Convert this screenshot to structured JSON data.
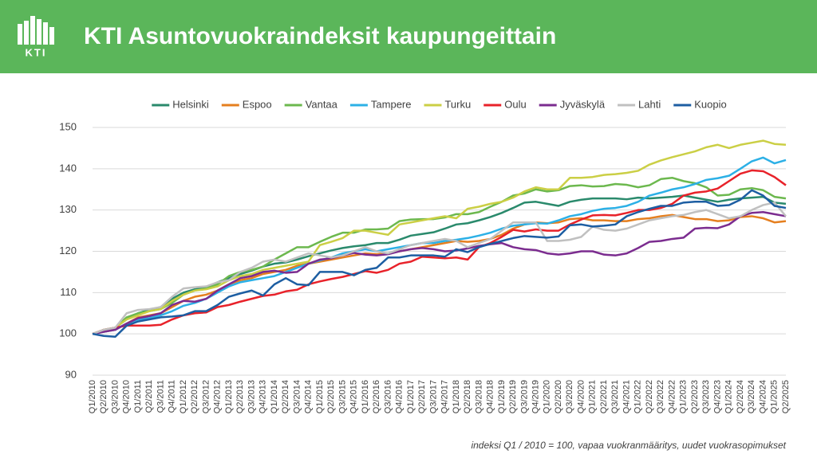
{
  "header": {
    "logo_text": "KTI"
  },
  "chart_data": {
    "type": "line",
    "title": "KTI Asuntovuokraindeksit kaupungeittain",
    "note": "indeksi Q1 / 2010 = 100, vapaa vuokranmääritys, uudet vuokrasopimukset",
    "legend": "top",
    "grid": true,
    "ylim": [
      90,
      150
    ],
    "yticks": [
      90,
      100,
      110,
      120,
      130,
      140,
      150
    ],
    "categories": [
      "Q1/2010",
      "Q2/2010",
      "Q3/2010",
      "Q4/2010",
      "Q1/2011",
      "Q2/2011",
      "Q3/2011",
      "Q4/2011",
      "Q1/2012",
      "Q2/2012",
      "Q3/2012",
      "Q4/2012",
      "Q1/2013",
      "Q2/2013",
      "Q3/2013",
      "Q4/2013",
      "Q1/2014",
      "Q2/2014",
      "Q3/2014",
      "Q4/2014",
      "Q1/2015",
      "Q2/2015",
      "Q3/2015",
      "Q4/2015",
      "Q1/2016",
      "Q2/2016",
      "Q3/2016",
      "Q4/2016",
      "Q1/2017",
      "Q2/2017",
      "Q3/2017",
      "Q4/2017",
      "Q1/2018",
      "Q2/2018",
      "Q3/2018",
      "Q4/2018",
      "Q1/2019",
      "Q2/2019",
      "Q3/2019",
      "Q4/2019",
      "Q1/2020",
      "Q2/2020",
      "Q3/2020",
      "Q4/2020",
      "Q1/2021",
      "Q2/2021",
      "Q3/2021",
      "Q4/2021",
      "Q1/2022",
      "Q2/2022",
      "Q3/2022",
      "Q4/2022",
      "Q1/2023",
      "Q2/2023",
      "Q3/2023",
      "Q4/2023",
      "Q1/2024",
      "Q2/2024",
      "Q3/2024",
      "Q4/2024",
      "Q1/2025",
      "Q2/2025"
    ],
    "series": [
      {
        "name": "Helsinki",
        "color": "#2a8a6c",
        "values": [
          100,
          100.8,
          101.5,
          103.5,
          105,
          105.8,
          106.5,
          108.5,
          110,
          110.8,
          111.3,
          112.5,
          113.5,
          114.5,
          115.3,
          116.3,
          117,
          117.3,
          118,
          118.8,
          119.5,
          120.2,
          120.8,
          121.2,
          121.5,
          122,
          122,
          122.8,
          123.8,
          124.2,
          124.6,
          125.5,
          126.5,
          126.8,
          127.5,
          128.3,
          129.3,
          130.5,
          131.8,
          132,
          131.5,
          131,
          132,
          132.5,
          132.8,
          132.8,
          132.8,
          132.6,
          133,
          132.8,
          133,
          133.2,
          133.5,
          133,
          132.5,
          132,
          132.5,
          132.8,
          133,
          133.2,
          131.8,
          131.5
        ]
      },
      {
        "name": "Espoo",
        "color": "#e57f1f",
        "values": [
          100,
          100.5,
          101,
          102.5,
          104,
          104.5,
          105,
          106.5,
          108,
          109,
          109.5,
          110.5,
          112,
          113,
          113.5,
          114.5,
          115,
          115.5,
          116.5,
          117,
          117.5,
          118,
          118.5,
          119,
          119.5,
          119.3,
          119.5,
          120,
          120.5,
          121,
          121.5,
          122,
          122.5,
          122.3,
          122.5,
          123,
          124,
          125.5,
          126.5,
          127,
          126.8,
          127,
          127.8,
          128,
          127.5,
          127.5,
          127.3,
          127.3,
          127.8,
          128,
          128.5,
          128.8,
          128.3,
          127.8,
          127.8,
          127.3,
          127.5,
          128.3,
          128.5,
          128,
          127,
          127.3
        ]
      },
      {
        "name": "Vantaa",
        "color": "#6cb84e",
        "values": [
          100,
          101,
          101.5,
          104,
          105,
          105.5,
          106,
          107.5,
          109.5,
          110.5,
          111,
          112,
          114,
          115,
          115.5,
          116.3,
          118,
          119.5,
          121,
          121,
          122.3,
          123.5,
          124.5,
          124.5,
          125.3,
          125.3,
          125.5,
          127.3,
          127.7,
          127.8,
          127.8,
          128.2,
          129,
          129,
          129.5,
          130.8,
          132,
          133.5,
          134,
          135,
          134.5,
          134.8,
          135.8,
          136,
          135.7,
          135.8,
          136.3,
          136.1,
          135.5,
          136,
          137.5,
          137.8,
          137,
          136.5,
          135.5,
          133.5,
          133.7,
          135,
          135.3,
          134.8,
          133.2,
          132.8
        ]
      },
      {
        "name": "Tampere",
        "color": "#2cb0e6",
        "values": [
          100,
          100.5,
          101,
          102.5,
          103.5,
          103.8,
          104.5,
          105.5,
          106.8,
          107.5,
          108.5,
          110,
          111.5,
          112.5,
          113,
          113.5,
          114,
          115,
          116,
          117,
          117.8,
          118.5,
          119.5,
          120,
          120.5,
          120,
          120.5,
          121,
          121.5,
          122,
          122,
          122.5,
          122.8,
          123.2,
          123.8,
          124.5,
          125.5,
          126.2,
          126.5,
          126.8,
          126.7,
          127.5,
          128.5,
          129,
          129.8,
          130.3,
          130.5,
          131,
          132,
          133.5,
          134.2,
          135,
          135.5,
          136.3,
          137.3,
          137.7,
          138.3,
          140,
          141.8,
          142.7,
          141.3,
          142.1
        ]
      },
      {
        "name": "Turku",
        "color": "#cbcf45",
        "values": [
          100,
          101,
          101.5,
          103.5,
          104.5,
          105.5,
          106,
          108,
          109.5,
          110.5,
          110.8,
          111.5,
          113,
          114,
          114.5,
          115.5,
          116,
          116.5,
          117,
          117.5,
          121.5,
          122.3,
          123.2,
          125,
          125,
          124.5,
          124,
          126.5,
          127,
          127.5,
          128,
          128.5,
          128,
          130.3,
          130.8,
          131.5,
          132,
          133,
          134.5,
          135.5,
          135,
          135,
          137.8,
          137.8,
          138,
          138.5,
          138.7,
          139,
          139.5,
          141,
          142,
          142.8,
          143.5,
          144.2,
          145.2,
          145.8,
          145,
          145.8,
          146.3,
          146.8,
          146,
          145.8
        ]
      },
      {
        "name": "Oulu",
        "color": "#e8222a",
        "values": [
          100,
          101,
          101.5,
          102,
          102,
          102,
          102.2,
          103.5,
          104.5,
          105,
          105.2,
          106.5,
          107,
          107.8,
          108.5,
          109.2,
          109.5,
          110.3,
          110.7,
          112,
          112.7,
          113.3,
          113.8,
          114.5,
          115.2,
          114.8,
          115.5,
          117,
          117.5,
          118.7,
          118.5,
          118.3,
          118.5,
          118,
          121,
          122,
          123.5,
          125.2,
          124.8,
          125.3,
          125,
          125,
          126.5,
          127.7,
          128.7,
          128.8,
          128.7,
          129.3,
          130,
          130,
          130.5,
          131.5,
          133.5,
          134.2,
          134.5,
          135.2,
          137,
          138.8,
          139.6,
          139.4,
          138,
          136
        ]
      },
      {
        "name": "Jyväskylä",
        "color": "#7b2c8f",
        "values": [
          100,
          100.5,
          101,
          102.5,
          103.8,
          104.3,
          105,
          107,
          108,
          107.8,
          108.5,
          110.5,
          112,
          113.5,
          114,
          115,
          115.3,
          114.8,
          115,
          117,
          118,
          118.3,
          119,
          119.6,
          119.2,
          119,
          119.3,
          120,
          120.5,
          120.8,
          120.5,
          120,
          120.2,
          120.7,
          121.3,
          121.7,
          122,
          121,
          120.5,
          120.3,
          119.5,
          119.2,
          119.5,
          120,
          120,
          119.2,
          119,
          119.5,
          120.8,
          122.3,
          122.5,
          123,
          123.3,
          125.5,
          125.7,
          125.6,
          126.5,
          128.5,
          129.3,
          129.5,
          129,
          128.5
        ]
      },
      {
        "name": "Lahti",
        "color": "#c0c0c0",
        "values": [
          100,
          101,
          101.5,
          105,
          105.8,
          106,
          106.5,
          109,
          111,
          111.3,
          111.5,
          112.5,
          113,
          115,
          116,
          117.5,
          118,
          117.5,
          118.5,
          119.5,
          119,
          118.5,
          119,
          120,
          121,
          120,
          119.5,
          120.5,
          121.5,
          122,
          122.5,
          123,
          122.5,
          121,
          122,
          123,
          125,
          127,
          127,
          127,
          122.5,
          122.5,
          122.8,
          123.5,
          126,
          125.2,
          125,
          125.5,
          126.5,
          127.5,
          128,
          128.5,
          128.8,
          129.5,
          130,
          129,
          128,
          128.5,
          130,
          131.2,
          131.8,
          128.5
        ]
      },
      {
        "name": "Kuopio",
        "color": "#1d5ea2",
        "values": [
          100,
          99.5,
          99.3,
          102,
          103,
          103.5,
          104,
          104.2,
          104.5,
          105.5,
          105.5,
          107,
          109,
          109.8,
          110.5,
          109.3,
          112,
          113.5,
          112,
          111.8,
          115,
          115,
          115,
          114.2,
          115.5,
          116,
          118.5,
          118.5,
          119,
          119,
          119,
          118.7,
          120.5,
          119.8,
          121,
          121.8,
          122.5,
          123.2,
          123.7,
          123.5,
          123.3,
          123.6,
          126.3,
          126.5,
          126,
          126.2,
          126.5,
          128.5,
          129.5,
          130.3,
          131,
          131,
          131.8,
          132,
          132,
          131,
          131.2,
          132.5,
          134.8,
          133.5,
          131,
          130.5
        ]
      }
    ]
  }
}
